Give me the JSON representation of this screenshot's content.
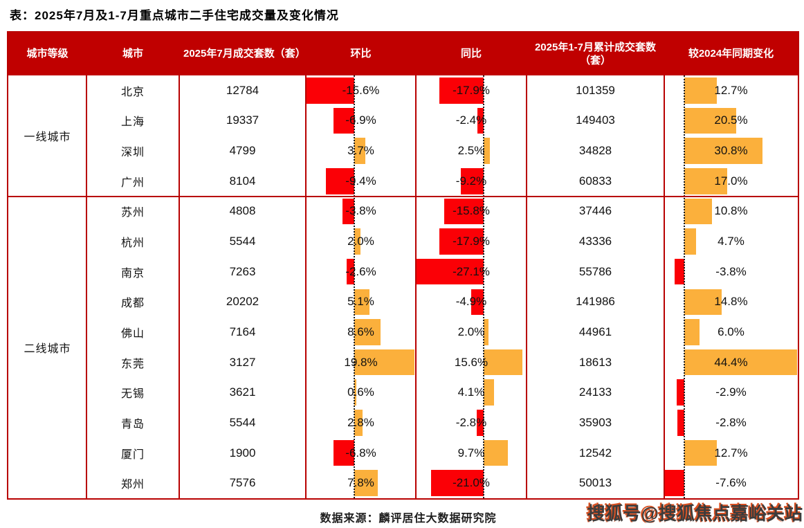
{
  "title": "表：2025年7月及1-7月重点城市二手住宅成交量及变化情况",
  "colors": {
    "header_bg": "#c00000",
    "table_border": "#b80000",
    "negative_bar": "#fb0006",
    "positive_bar": "#fbb03c",
    "header_text": "#ffffff",
    "body_text": "#111111"
  },
  "table": {
    "headers": [
      "城市等级",
      "城市",
      "2025年7月成交套数（套）",
      "环比",
      "同比",
      "2025年1-7月累计成交套数（套）",
      "较2024年同期变化"
    ],
    "groups": [
      {
        "tier": "一线城市",
        "rows": [
          {
            "city": "北京",
            "jul_units": "12784",
            "mom": -15.6,
            "yoy": -17.9,
            "cum_units": "101359",
            "chg": 12.7
          },
          {
            "city": "上海",
            "jul_units": "19337",
            "mom": -6.9,
            "yoy": -2.4,
            "cum_units": "149403",
            "chg": 20.5
          },
          {
            "city": "深圳",
            "jul_units": "4799",
            "mom": 3.7,
            "yoy": 2.5,
            "cum_units": "34828",
            "chg": 30.8
          },
          {
            "city": "广州",
            "jul_units": "8104",
            "mom": -9.4,
            "yoy": -9.2,
            "cum_units": "60833",
            "chg": 17.0
          }
        ]
      },
      {
        "tier": "二线城市",
        "rows": [
          {
            "city": "苏州",
            "jul_units": "4808",
            "mom": -3.8,
            "yoy": -15.8,
            "cum_units": "37446",
            "chg": 10.8
          },
          {
            "city": "杭州",
            "jul_units": "5544",
            "mom": 2.0,
            "yoy": -17.9,
            "cum_units": "43336",
            "chg": 4.7
          },
          {
            "city": "南京",
            "jul_units": "7263",
            "mom": -2.6,
            "yoy": -27.1,
            "cum_units": "55786",
            "chg": -3.8
          },
          {
            "city": "成都",
            "jul_units": "20202",
            "mom": 5.1,
            "yoy": -4.9,
            "cum_units": "141986",
            "chg": 14.8
          },
          {
            "city": "佛山",
            "jul_units": "7164",
            "mom": 8.6,
            "yoy": 2.0,
            "cum_units": "44961",
            "chg": 6.0
          },
          {
            "city": "东莞",
            "jul_units": "3127",
            "mom": 19.8,
            "yoy": 15.6,
            "cum_units": "18613",
            "chg": 44.4
          },
          {
            "city": "无锡",
            "jul_units": "3621",
            "mom": 0.6,
            "yoy": 4.1,
            "cum_units": "24133",
            "chg": -2.9
          },
          {
            "city": "青岛",
            "jul_units": "5544",
            "mom": 2.8,
            "yoy": -2.8,
            "cum_units": "35903",
            "chg": -2.8
          },
          {
            "city": "厦门",
            "jul_units": "1900",
            "mom": -6.8,
            "yoy": 9.7,
            "cum_units": "12542",
            "chg": 12.7
          },
          {
            "city": "郑州",
            "jul_units": "7576",
            "mom": 7.8,
            "yoy": -21.0,
            "cum_units": "50013",
            "chg": -7.6
          }
        ]
      }
    ]
  },
  "footer": {
    "source": "数据来源：麟评居住大数据研究院",
    "watermark": "搜狐号@搜狐焦点嘉峪关站"
  },
  "chart_data": {
    "type": "table",
    "title": "表：2025年7月及1-7月重点城市二手住宅成交量及变化情况",
    "columns": [
      "城市等级",
      "城市",
      "2025年7月成交套数（套）",
      "环比",
      "同比",
      "2025年1-7月累计成交套数（套）",
      "较2024年同期变化"
    ],
    "bar_columns_note": "环比/同比/较2024年同期变化 cells contain in-cell bars: negative=red extends left of dotted zero line, positive=orange extends right",
    "rows": [
      [
        "一线城市",
        "北京",
        12784,
        -15.6,
        -17.9,
        101359,
        12.7
      ],
      [
        "一线城市",
        "上海",
        19337,
        -6.9,
        -2.4,
        149403,
        20.5
      ],
      [
        "一线城市",
        "深圳",
        4799,
        3.7,
        2.5,
        34828,
        30.8
      ],
      [
        "一线城市",
        "广州",
        8104,
        -9.4,
        -9.2,
        60833,
        17.0
      ],
      [
        "二线城市",
        "苏州",
        4808,
        -3.8,
        -15.8,
        37446,
        10.8
      ],
      [
        "二线城市",
        "杭州",
        5544,
        2.0,
        -17.9,
        43336,
        4.7
      ],
      [
        "二线城市",
        "南京",
        7263,
        -2.6,
        -27.1,
        55786,
        -3.8
      ],
      [
        "二线城市",
        "成都",
        20202,
        5.1,
        -4.9,
        141986,
        14.8
      ],
      [
        "二线城市",
        "佛山",
        7164,
        8.6,
        2.0,
        44961,
        6.0
      ],
      [
        "二线城市",
        "东莞",
        3127,
        19.8,
        15.6,
        18613,
        44.4
      ],
      [
        "二线城市",
        "无锡",
        3621,
        0.6,
        4.1,
        24133,
        -2.9
      ],
      [
        "二线城市",
        "青岛",
        5544,
        2.8,
        -2.8,
        35903,
        -2.8
      ],
      [
        "二线城市",
        "厦门",
        1900,
        -6.8,
        9.7,
        12542,
        12.7
      ],
      [
        "二线城市",
        "郑州",
        7576,
        7.8,
        -21.0,
        50013,
        -7.6
      ]
    ]
  }
}
